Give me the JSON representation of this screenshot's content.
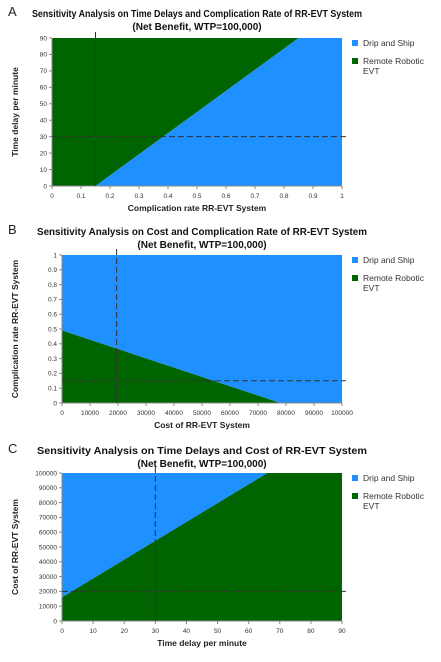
{
  "colors": {
    "drip": "#1e90ff",
    "remote": "#006400",
    "axis": "#888888",
    "ref_line": "#333333"
  },
  "legend": {
    "items": [
      "Drip and Ship",
      "Remote Robotic EVT"
    ]
  },
  "panels": [
    {
      "letter": "A",
      "title_line1": "Sensitivity Analysis on Time Delays and Complication Rate of RR-EVT System",
      "title_line2": "(Net Benefit, WTP=100,000)",
      "xlabel": "Complication rate RR-EVT System",
      "ylabel": "Time delay per minute",
      "xticks": [
        "0",
        "0.1",
        "0.2",
        "0.3",
        "0.4",
        "0.5",
        "0.6",
        "0.7",
        "0.8",
        "0.9",
        "1"
      ],
      "yticks": [
        "0",
        "10",
        "20",
        "30",
        "40",
        "50",
        "60",
        "70",
        "80",
        "90"
      ]
    },
    {
      "letter": "B",
      "title_line1": "Sensitivity Analysis on Cost and Complication Rate of RR-EVT System",
      "title_line2": "(Net Benefit, WTP=100,000)",
      "xlabel": "Cost of RR-EVT System",
      "ylabel": "Complication rate RR-EVT System",
      "xticks": [
        "0",
        "10000",
        "20000",
        "30000",
        "40000",
        "50000",
        "60000",
        "70000",
        "80000",
        "90000",
        "100000"
      ],
      "yticks": [
        "0",
        "0.1",
        "0.2",
        "0.3",
        "0.4",
        "0.5",
        "0.6",
        "0.7",
        "0.8",
        "0.9",
        "1"
      ]
    },
    {
      "letter": "C",
      "title_line1": "Sensitivity Analysis on Time Delays and Cost of RR-EVT System",
      "title_line2": "(Net Benefit, WTP=100,000)",
      "xlabel": "Time delay per minute",
      "ylabel": "Cost of RR-EVT System",
      "xticks": [
        "0",
        "10",
        "20",
        "30",
        "40",
        "50",
        "60",
        "70",
        "80",
        "90"
      ],
      "yticks": [
        "0",
        "10000",
        "20000",
        "30000",
        "40000",
        "50000",
        "60000",
        "70000",
        "80000",
        "90000",
        "100000"
      ]
    }
  ],
  "chart_data": [
    {
      "type": "area",
      "title": "Sensitivity Analysis on Time Delays and Complication Rate of RR-EVT System",
      "subtitle": "(Net Benefit, WTP=100,000)",
      "xlabel": "Complication rate RR-EVT System",
      "ylabel": "Time delay per minute",
      "xlim": [
        0,
        1
      ],
      "ylim": [
        0,
        90
      ],
      "legend": "right",
      "series": [
        {
          "name": "Remote Robotic EVT",
          "region": "above threshold line"
        },
        {
          "name": "Drip and Ship",
          "region": "below threshold line"
        }
      ],
      "threshold": [
        [
          0.15,
          0
        ],
        [
          0.85,
          90
        ]
      ],
      "reference_lines": {
        "x": 0.15,
        "y": 30
      }
    },
    {
      "type": "area",
      "title": "Sensitivity Analysis on Cost and Complication Rate of RR-EVT System",
      "subtitle": "(Net Benefit, WTP=100,000)",
      "xlabel": "Cost of RR-EVT System",
      "ylabel": "Complication rate RR-EVT System",
      "xlim": [
        0,
        100000
      ],
      "ylim": [
        0,
        1
      ],
      "legend": "right",
      "series": [
        {
          "name": "Drip and Ship",
          "region": "above threshold line"
        },
        {
          "name": "Remote Robotic EVT",
          "region": "below threshold line"
        }
      ],
      "threshold": [
        [
          0,
          0.49
        ],
        [
          78000,
          0
        ]
      ],
      "reference_lines": {
        "x": 19500,
        "y": 0.15
      }
    },
    {
      "type": "area",
      "title": "Sensitivity Analysis on Time Delays and Cost of RR-EVT System",
      "subtitle": "(Net Benefit, WTP=100,000)",
      "xlabel": "Time delay per minute",
      "ylabel": "Cost of RR-EVT System",
      "xlim": [
        0,
        90
      ],
      "ylim": [
        0,
        100000
      ],
      "legend": "right",
      "series": [
        {
          "name": "Drip and Ship",
          "region": "above threshold line"
        },
        {
          "name": "Remote Robotic EVT",
          "region": "below threshold line"
        }
      ],
      "threshold": [
        [
          0,
          16000
        ],
        [
          66,
          100000
        ]
      ],
      "reference_lines": {
        "x": 30,
        "y": 20000
      }
    }
  ]
}
